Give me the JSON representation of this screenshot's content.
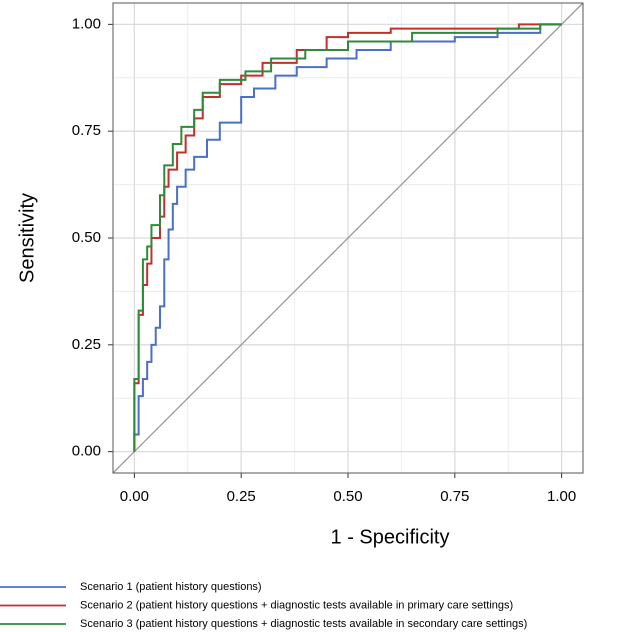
{
  "chart_data": {
    "type": "line",
    "x_label": "1 - Specificity",
    "y_label": "Sensitivity",
    "xlim": [
      -0.05,
      1.05
    ],
    "ylim": [
      -0.05,
      1.05
    ],
    "grid": true,
    "legend": "bottom",
    "xticks": [
      {
        "value": 0,
        "label": "0.00"
      },
      {
        "value": 0.25,
        "label": "0.25"
      },
      {
        "value": 0.5,
        "label": "0.50"
      },
      {
        "value": 0.75,
        "label": "0.75"
      },
      {
        "value": 1,
        "label": "1.00"
      }
    ],
    "yticks": [
      {
        "value": 0,
        "label": "0.00"
      },
      {
        "value": 0.25,
        "label": "0.25"
      },
      {
        "value": 0.5,
        "label": "0.50"
      },
      {
        "value": 0.75,
        "label": "0.75"
      },
      {
        "value": 1,
        "label": "1.00"
      }
    ],
    "series": [
      {
        "name": "Scenario 1 (patient history questions)",
        "color": "#4a6fc8",
        "x": [
          0,
          0,
          0.01,
          0.01,
          0.02,
          0.02,
          0.03,
          0.03,
          0.04,
          0.04,
          0.05,
          0.05,
          0.06,
          0.06,
          0.07,
          0.07,
          0.08,
          0.08,
          0.09,
          0.09,
          0.1,
          0.1,
          0.12,
          0.12,
          0.14,
          0.14,
          0.17,
          0.17,
          0.2,
          0.2,
          0.25,
          0.25,
          0.28,
          0.28,
          0.33,
          0.33,
          0.38,
          0.38,
          0.45,
          0.45,
          0.52,
          0.52,
          0.6,
          0.6,
          0.75,
          0.75,
          0.85,
          0.85,
          0.95,
          0.95,
          1
        ],
        "values": [
          0,
          0.04,
          0.04,
          0.13,
          0.13,
          0.17,
          0.17,
          0.21,
          0.21,
          0.25,
          0.25,
          0.29,
          0.29,
          0.34,
          0.34,
          0.45,
          0.45,
          0.52,
          0.52,
          0.58,
          0.58,
          0.62,
          0.62,
          0.66,
          0.66,
          0.69,
          0.69,
          0.73,
          0.73,
          0.77,
          0.77,
          0.83,
          0.83,
          0.85,
          0.85,
          0.88,
          0.88,
          0.9,
          0.9,
          0.92,
          0.92,
          0.94,
          0.94,
          0.96,
          0.96,
          0.97,
          0.97,
          0.98,
          0.98,
          1,
          1
        ]
      },
      {
        "name": "Scenario 2 (patient history questions + diagnostic tests available in primary care settings)",
        "color": "#c0302c",
        "x": [
          0,
          0,
          0.01,
          0.01,
          0.02,
          0.02,
          0.03,
          0.03,
          0.04,
          0.04,
          0.06,
          0.06,
          0.07,
          0.07,
          0.08,
          0.08,
          0.1,
          0.1,
          0.12,
          0.12,
          0.14,
          0.14,
          0.16,
          0.16,
          0.2,
          0.2,
          0.25,
          0.25,
          0.3,
          0.3,
          0.38,
          0.38,
          0.45,
          0.45,
          0.5,
          0.5,
          0.6,
          0.6,
          0.9,
          0.9,
          1
        ],
        "values": [
          0,
          0.16,
          0.16,
          0.32,
          0.32,
          0.39,
          0.39,
          0.44,
          0.44,
          0.5,
          0.5,
          0.55,
          0.55,
          0.62,
          0.62,
          0.66,
          0.66,
          0.7,
          0.7,
          0.74,
          0.74,
          0.78,
          0.78,
          0.83,
          0.83,
          0.86,
          0.86,
          0.88,
          0.88,
          0.91,
          0.91,
          0.94,
          0.94,
          0.97,
          0.97,
          0.98,
          0.98,
          0.99,
          0.99,
          1,
          1
        ]
      },
      {
        "name": "Scenario 3 (patient history questions + diagnostic tests available in secondary care settings)",
        "color": "#2e8b3a",
        "x": [
          0,
          0,
          0.01,
          0.01,
          0.02,
          0.02,
          0.03,
          0.03,
          0.04,
          0.04,
          0.06,
          0.06,
          0.07,
          0.07,
          0.09,
          0.09,
          0.11,
          0.11,
          0.14,
          0.14,
          0.16,
          0.16,
          0.2,
          0.2,
          0.26,
          0.26,
          0.32,
          0.32,
          0.4,
          0.4,
          0.5,
          0.5,
          0.65,
          0.65,
          0.85,
          0.85,
          0.95,
          0.95,
          1
        ],
        "values": [
          0,
          0.17,
          0.17,
          0.33,
          0.33,
          0.45,
          0.45,
          0.48,
          0.48,
          0.53,
          0.53,
          0.6,
          0.6,
          0.67,
          0.67,
          0.72,
          0.72,
          0.76,
          0.76,
          0.8,
          0.8,
          0.84,
          0.84,
          0.87,
          0.87,
          0.89,
          0.89,
          0.92,
          0.92,
          0.94,
          0.94,
          0.96,
          0.96,
          0.98,
          0.98,
          0.99,
          0.99,
          1,
          1
        ]
      }
    ]
  }
}
